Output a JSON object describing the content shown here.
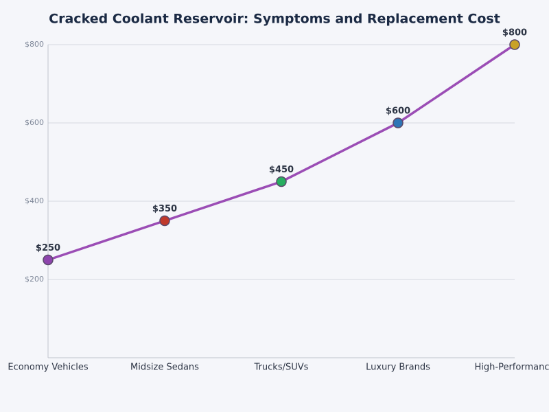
{
  "chart_data": {
    "type": "line",
    "title": "Cracked Coolant Reservoir: Symptoms and Replacement Cost",
    "categories": [
      "Economy Vehicles",
      "Midsize Sedans",
      "Trucks/SUVs",
      "Luxury Brands",
      "High-Performance"
    ],
    "values": [
      250,
      350,
      450,
      600,
      800
    ],
    "value_labels": [
      "$250",
      "$350",
      "$450",
      "$600",
      "$800"
    ],
    "color": "#9b4db5",
    "marker_colors": [
      "#8e44ad",
      "#c0392b",
      "#27ae60",
      "#2e75b6",
      "#c9a227"
    ],
    "ylim": [
      0,
      800
    ],
    "yticks": [
      {
        "value": 200,
        "label": "$200"
      },
      {
        "value": 400,
        "label": "$400"
      },
      {
        "value": 600,
        "label": "$600"
      },
      {
        "value": 800,
        "label": "$800"
      }
    ],
    "grid": true
  }
}
